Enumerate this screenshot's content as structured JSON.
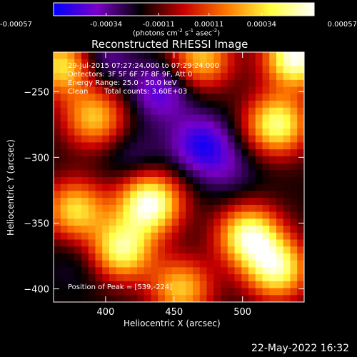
{
  "chart_data": {
    "type": "heatmap",
    "title": "Reconstructed RHESSI Image",
    "xlabel": "Heliocentric X (arcsec)",
    "ylabel": "Heliocentric Y (arcsec)",
    "xlim": [
      362,
      545
    ],
    "ylim": [
      -410,
      -220
    ],
    "xticks": [
      400,
      450,
      500
    ],
    "yticks": [
      -250,
      -300,
      -350,
      -400
    ],
    "colorbar": {
      "range": [
        -0.00057,
        0.00057
      ],
      "ticks": [
        "-0.00057",
        "-0.00034",
        "-0.00011",
        "0.00011",
        "0.00034",
        "0.00057"
      ],
      "unit_label_parts": [
        "(photons cm",
        "-2",
        " s",
        "-1",
        " asec",
        "-2",
        ")"
      ],
      "colors": [
        "#0000ff",
        "#7a00c8",
        "#000000",
        "#c80000",
        "#ff7a00",
        "#ffff40",
        "#ffffff"
      ]
    },
    "annotations": {
      "time_range": "29-Jul-2015 07:27:24.000 to 07:29:24.000",
      "detectors": "Detectors: 3F 5F 6F 7F 8F 9F, Att 0",
      "energy": "Energy Range: 25.0 - 50.0 keV",
      "method": "Clean",
      "total_counts": "Total counts: 3.60E+03",
      "peak": "Position of Peak = [539,-224]"
    },
    "features": [
      {
        "x": 392,
        "y": -270,
        "value": 0.0003
      },
      {
        "x": 378,
        "y": -340,
        "value": 0.00034
      },
      {
        "x": 432,
        "y": -335,
        "value": 0.00057
      },
      {
        "x": 412,
        "y": -370,
        "value": 0.00045
      },
      {
        "x": 505,
        "y": -360,
        "value": 0.0005
      },
      {
        "x": 525,
        "y": -385,
        "value": 0.00045
      },
      {
        "x": 525,
        "y": -275,
        "value": 0.00045
      },
      {
        "x": 539,
        "y": -224,
        "value": 0.00057
      },
      {
        "x": 470,
        "y": -225,
        "value": 0.0003
      },
      {
        "x": 370,
        "y": -230,
        "value": 0.0004
      },
      {
        "x": 455,
        "y": -400,
        "value": 0.0003
      },
      {
        "x": 470,
        "y": -290,
        "value": -0.0005
      },
      {
        "x": 440,
        "y": -250,
        "value": -0.00045
      },
      {
        "x": 395,
        "y": -225,
        "value": -0.0004
      },
      {
        "x": 420,
        "y": -300,
        "value": -0.0003
      },
      {
        "x": 490,
        "y": -310,
        "value": -0.0003
      },
      {
        "x": 380,
        "y": -380,
        "value": -0.00025
      }
    ]
  },
  "footer": {
    "timestamp": "22-May-2022 16:32"
  }
}
